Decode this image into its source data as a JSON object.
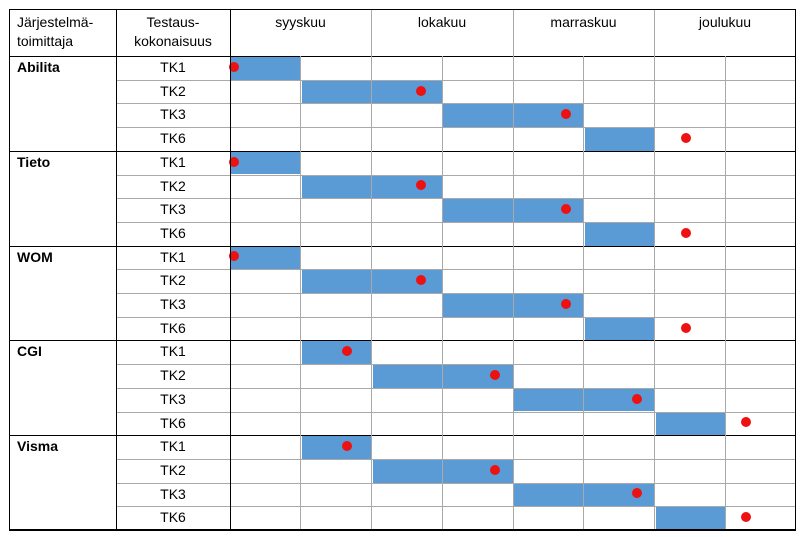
{
  "header": {
    "supplier": [
      "Järjestelmä-",
      "toimittaja"
    ],
    "package": [
      "Testaus-",
      "kokonaisuus"
    ],
    "months": [
      "syyskuu",
      "lokakuu",
      "marraskuu",
      "joulukuu"
    ]
  },
  "colors": {
    "bar": "#5b9bd5",
    "dot": "#ee1111",
    "grid": "#a9a9a9",
    "border": "#000000"
  },
  "suppliers": [
    {
      "name": "Abilita",
      "rows": [
        {
          "package": "TK1",
          "bar": [
            0,
            1
          ],
          "marker": 0.05
        },
        {
          "package": "TK2",
          "bar": [
            1,
            3
          ],
          "marker": 2.7
        },
        {
          "package": "TK3",
          "bar": [
            3,
            5
          ],
          "marker": 4.75
        },
        {
          "package": "TK6",
          "bar": [
            5,
            6
          ],
          "marker": 6.45
        }
      ]
    },
    {
      "name": "Tieto",
      "rows": [
        {
          "package": "TK1",
          "bar": [
            0,
            1
          ],
          "marker": 0.05
        },
        {
          "package": "TK2",
          "bar": [
            1,
            3
          ],
          "marker": 2.7
        },
        {
          "package": "TK3",
          "bar": [
            3,
            5
          ],
          "marker": 4.75
        },
        {
          "package": "TK6",
          "bar": [
            5,
            6
          ],
          "marker": 6.45
        }
      ]
    },
    {
      "name": "WOM",
      "rows": [
        {
          "package": "TK1",
          "bar": [
            0,
            1
          ],
          "marker": 0.05
        },
        {
          "package": "TK2",
          "bar": [
            1,
            3
          ],
          "marker": 2.7
        },
        {
          "package": "TK3",
          "bar": [
            3,
            5
          ],
          "marker": 4.75
        },
        {
          "package": "TK6",
          "bar": [
            5,
            6
          ],
          "marker": 6.45
        }
      ]
    },
    {
      "name": "CGI",
      "rows": [
        {
          "package": "TK1",
          "bar": [
            1,
            2
          ],
          "marker": 1.65
        },
        {
          "package": "TK2",
          "bar": [
            2,
            4
          ],
          "marker": 3.75
        },
        {
          "package": "TK3",
          "bar": [
            4,
            6
          ],
          "marker": 5.75
        },
        {
          "package": "TK6",
          "bar": [
            6,
            7
          ],
          "marker": 7.3
        }
      ]
    },
    {
      "name": "Visma",
      "rows": [
        {
          "package": "TK1",
          "bar": [
            1,
            2
          ],
          "marker": 1.65
        },
        {
          "package": "TK2",
          "bar": [
            2,
            4
          ],
          "marker": 3.75
        },
        {
          "package": "TK3",
          "bar": [
            4,
            6
          ],
          "marker": 5.75
        },
        {
          "package": "TK6",
          "bar": [
            6,
            7
          ],
          "marker": 7.3
        }
      ]
    }
  ]
}
